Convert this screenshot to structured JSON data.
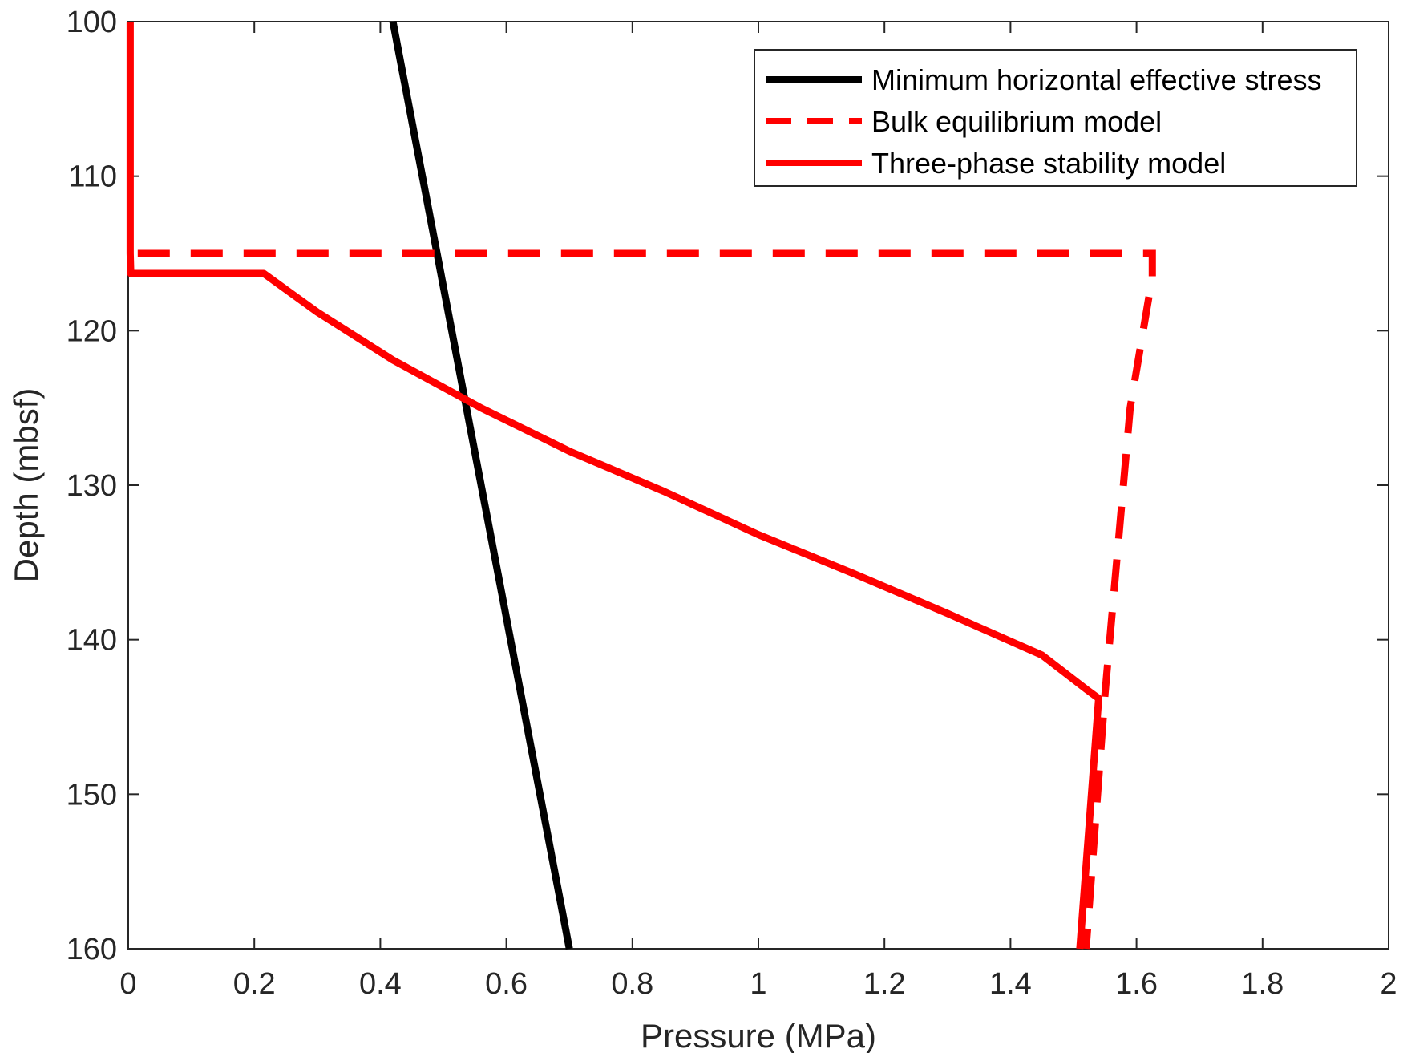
{
  "chart_data": {
    "type": "line",
    "title": "",
    "xlabel": "Pressure (MPa)",
    "ylabel": "Depth (mbsf)",
    "xlim": [
      0,
      2
    ],
    "ylim": [
      100,
      160
    ],
    "y_reversed": true,
    "grid": false,
    "legend_position": "top-right",
    "x_ticks": [
      0,
      0.2,
      0.4,
      0.6,
      0.8,
      1,
      1.2,
      1.4,
      1.6,
      1.8,
      2
    ],
    "x_tick_labels": [
      "0",
      "0.2",
      "0.4",
      "0.6",
      "0.8",
      "1",
      "1.2",
      "1.4",
      "1.6",
      "1.8",
      "2"
    ],
    "y_ticks": [
      100,
      110,
      120,
      130,
      140,
      150,
      160
    ],
    "y_tick_labels": [
      "100",
      "110",
      "120",
      "130",
      "140",
      "150",
      "160"
    ],
    "series": [
      {
        "name": "Minimum horizontal effective stress",
        "color": "#000000",
        "style": "solid",
        "x": [
          0.42,
          0.7
        ],
        "y": [
          100,
          160
        ]
      },
      {
        "name": "Bulk equilibrium model",
        "color": "#ff0000",
        "style": "dashed",
        "x": [
          0.015,
          1.625,
          1.625,
          1.59,
          1.55,
          1.52
        ],
        "y": [
          115,
          115,
          116.5,
          125,
          143.5,
          160
        ]
      },
      {
        "name": "Three-phase stability model",
        "color": "#ff0000",
        "style": "solid",
        "x": [
          0.003,
          0.003,
          0.004,
          0.215,
          0.3,
          0.42,
          0.56,
          0.7,
          0.85,
          1.0,
          1.15,
          1.3,
          1.45,
          1.52,
          1.54,
          1.51
        ],
        "y": [
          100,
          115,
          116.3,
          116.3,
          118.8,
          121.9,
          125.0,
          127.8,
          130.4,
          133.2,
          135.7,
          138.3,
          141.0,
          143.2,
          143.8,
          160
        ]
      }
    ]
  }
}
